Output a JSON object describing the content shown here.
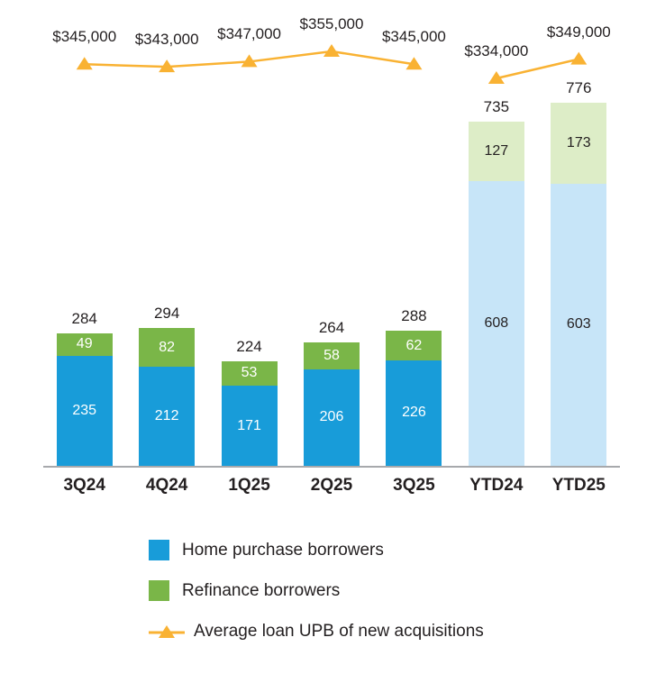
{
  "chart_data": {
    "type": "stacked-bar-with-line",
    "categories": [
      "3Q24",
      "4Q24",
      "1Q25",
      "2Q25",
      "3Q25",
      "YTD24",
      "YTD25"
    ],
    "series": [
      {
        "name": "Home purchase borrowers",
        "values": [
          235,
          212,
          171,
          206,
          226,
          608,
          603
        ]
      },
      {
        "name": "Refinance borrowers",
        "values": [
          49,
          82,
          53,
          58,
          62,
          127,
          173
        ]
      }
    ],
    "totals": [
      284,
      294,
      224,
      264,
      288,
      735,
      776
    ],
    "line_series": {
      "name": "Average loan UPB of new acquisitions",
      "values": [
        345000,
        343000,
        347000,
        355000,
        345000,
        334000,
        349000
      ],
      "labels": [
        "$345,000",
        "$343,000",
        "$347,000",
        "$355,000",
        "$345,000",
        "$334,000",
        "$349,000"
      ],
      "segments": [
        [
          0,
          1,
          2,
          3,
          4
        ],
        [
          5,
          6
        ]
      ]
    },
    "ylim": [
      0,
      776
    ],
    "grid": "off",
    "legend_position": "bottom-left",
    "ytd_categories": [
      "YTD24",
      "YTD25"
    ],
    "colors": {
      "home_purchase": "#189cd9",
      "refinance": "#7ab648",
      "home_purchase_ytd": "#c7e5f8",
      "refinance_ytd": "#ddedc7",
      "line": "#f9b233",
      "axis": "#a7a9ac",
      "text": "#231f20"
    }
  },
  "legend": {
    "items": [
      {
        "label": "Home purchase borrowers"
      },
      {
        "label": "Refinance borrowers"
      },
      {
        "label": "Average loan UPB of new acquisitions"
      }
    ]
  }
}
